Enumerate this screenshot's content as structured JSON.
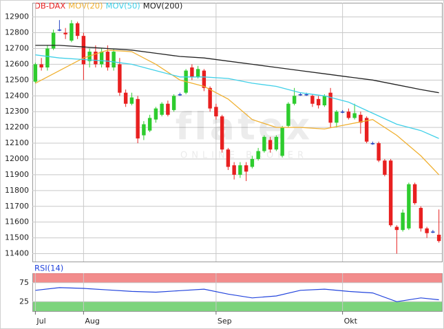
{
  "chart_data": {
    "type": "candlestick",
    "series_name": "DB-DAX",
    "up_color": "#2ecc2e",
    "down_color": "#e82020",
    "doji_color": "#2040c0",
    "ohlc": [
      [
        12490,
        12610,
        12480,
        12600
      ],
      [
        12600,
        12640,
        12560,
        12580
      ],
      [
        12580,
        12720,
        12560,
        12700
      ],
      [
        12700,
        12820,
        12690,
        12800
      ],
      [
        12820,
        12880,
        12810,
        12820
      ],
      [
        12800,
        12830,
        12760,
        12790
      ],
      [
        12750,
        12880,
        12740,
        12860
      ],
      [
        12860,
        12870,
        12760,
        12780
      ],
      [
        12780,
        12800,
        12500,
        12600
      ],
      [
        12620,
        12700,
        12580,
        12680
      ],
      [
        12680,
        12720,
        12580,
        12600
      ],
      [
        12600,
        12700,
        12580,
        12680
      ],
      [
        12680,
        12720,
        12560,
        12580
      ],
      [
        12580,
        12700,
        12560,
        12680
      ],
      [
        12600,
        12640,
        12400,
        12420
      ],
      [
        12420,
        12440,
        12330,
        12350
      ],
      [
        12350,
        12420,
        12340,
        12390
      ],
      [
        12380,
        12400,
        12100,
        12130
      ],
      [
        12150,
        12240,
        12120,
        12220
      ],
      [
        12180,
        12280,
        12170,
        12260
      ],
      [
        12250,
        12330,
        12230,
        12320
      ],
      [
        12280,
        12360,
        12270,
        12350
      ],
      [
        12350,
        12370,
        12270,
        12280
      ],
      [
        12310,
        12410,
        12300,
        12400
      ],
      [
        12410,
        12420,
        12400,
        12410
      ],
      [
        12420,
        12570,
        12410,
        12560
      ],
      [
        12580,
        12600,
        12500,
        12520
      ],
      [
        12520,
        12590,
        12510,
        12570
      ],
      [
        12560,
        12570,
        12430,
        12450
      ],
      [
        12450,
        12460,
        12300,
        12320
      ],
      [
        12330,
        12350,
        12250,
        12270
      ],
      [
        12270,
        12280,
        12040,
        12060
      ],
      [
        12060,
        12070,
        11930,
        11950
      ],
      [
        11960,
        11980,
        11870,
        11900
      ],
      [
        11900,
        11980,
        11880,
        11960
      ],
      [
        11960,
        11980,
        11860,
        11920
      ],
      [
        11950,
        12020,
        11940,
        12000
      ],
      [
        12000,
        12070,
        11990,
        12050
      ],
      [
        12050,
        12150,
        12040,
        12140
      ],
      [
        12120,
        12140,
        12040,
        12060
      ],
      [
        12060,
        12150,
        12050,
        12140
      ],
      [
        12020,
        12210,
        12010,
        12200
      ],
      [
        12210,
        12360,
        12200,
        12350
      ],
      [
        12350,
        12450,
        12340,
        12400
      ],
      [
        12410,
        12420,
        12400,
        12410
      ],
      [
        12410,
        12420,
        12400,
        12410
      ],
      [
        12400,
        12410,
        12330,
        12350
      ],
      [
        12380,
        12400,
        12320,
        12340
      ],
      [
        12340,
        12410,
        12330,
        12400
      ],
      [
        12420,
        12450,
        12200,
        12230
      ],
      [
        12230,
        12310,
        12200,
        12300
      ],
      [
        12300,
        12310,
        12290,
        12300
      ],
      [
        12300,
        12320,
        12250,
        12260
      ],
      [
        12260,
        12350,
        12250,
        12290
      ],
      [
        12280,
        12300,
        12160,
        12230
      ],
      [
        12260,
        12270,
        12100,
        12110
      ],
      [
        12100,
        12110,
        12090,
        12100
      ],
      [
        12100,
        12110,
        11980,
        11990
      ],
      [
        11990,
        12000,
        11890,
        11900
      ],
      [
        11990,
        12000,
        11570,
        11580
      ],
      [
        11570,
        11580,
        11400,
        11550
      ],
      [
        11550,
        11680,
        11540,
        11660
      ],
      [
        11560,
        11850,
        11550,
        11840
      ],
      [
        11840,
        11850,
        11710,
        11720
      ],
      [
        11690,
        11700,
        11540,
        11560
      ],
      [
        11560,
        11570,
        11500,
        11530
      ],
      [
        11540,
        11550,
        11530,
        11540
      ],
      [
        11520,
        11680,
        11470,
        11480
      ]
    ],
    "xlim": [
      -0.5,
      67.5
    ],
    "xticks": [
      {
        "value": 0,
        "label": "Jul"
      },
      {
        "value": 8,
        "label": "Aug"
      },
      {
        "value": 30,
        "label": "Sep"
      },
      {
        "value": 51,
        "label": "Okt"
      }
    ],
    "ylim": [
      11350,
      12990
    ],
    "yticks": [
      11400,
      11500,
      11600,
      11700,
      11800,
      11900,
      12000,
      12100,
      12200,
      12300,
      12400,
      12500,
      12600,
      12700,
      12800,
      12900
    ],
    "grid": true,
    "watermark": "flatex",
    "watermark_sub": "ONLINE BROKER",
    "lines": [
      {
        "name": "MOV(20)",
        "color": "#f0b030",
        "x": [
          0,
          4,
          8,
          12,
          16,
          20,
          24,
          28,
          32,
          36,
          40,
          44,
          48,
          52,
          56,
          60,
          64,
          67
        ],
        "values": [
          12480,
          12560,
          12640,
          12690,
          12680,
          12600,
          12500,
          12460,
          12380,
          12250,
          12200,
          12200,
          12190,
          12220,
          12250,
          12150,
          12020,
          11900
        ]
      },
      {
        "name": "MOV(50)",
        "color": "#40d0e8",
        "x": [
          0,
          4,
          8,
          12,
          16,
          20,
          24,
          28,
          32,
          36,
          40,
          44,
          48,
          52,
          56,
          60,
          64,
          67
        ],
        "values": [
          12660,
          12640,
          12630,
          12620,
          12600,
          12560,
          12520,
          12520,
          12510,
          12480,
          12460,
          12420,
          12400,
          12360,
          12290,
          12220,
          12180,
          12130
        ]
      },
      {
        "name": "MOV(200)",
        "color": "#222222",
        "x": [
          0,
          4,
          8,
          12,
          16,
          20,
          24,
          28,
          32,
          36,
          40,
          44,
          48,
          52,
          56,
          60,
          64,
          67
        ],
        "values": [
          12720,
          12720,
          12710,
          12700,
          12690,
          12670,
          12650,
          12640,
          12620,
          12600,
          12580,
          12560,
          12540,
          12520,
          12500,
          12470,
          12440,
          12420
        ]
      }
    ],
    "rsi": {
      "name": "RSI(14)",
      "color": "#2244dd",
      "x": [
        0,
        4,
        8,
        12,
        16,
        20,
        24,
        28,
        32,
        36,
        40,
        44,
        48,
        52,
        56,
        60,
        64,
        67
      ],
      "values": [
        55,
        62,
        60,
        56,
        52,
        50,
        54,
        58,
        45,
        35,
        40,
        55,
        58,
        52,
        48,
        25,
        35,
        30
      ],
      "ylim": [
        0,
        100
      ],
      "yticks": [
        25,
        75
      ],
      "bands": [
        {
          "from": 75,
          "to": 100,
          "color": "#f07878"
        },
        {
          "from": 0,
          "to": 25,
          "color": "#66cc66"
        }
      ]
    }
  }
}
